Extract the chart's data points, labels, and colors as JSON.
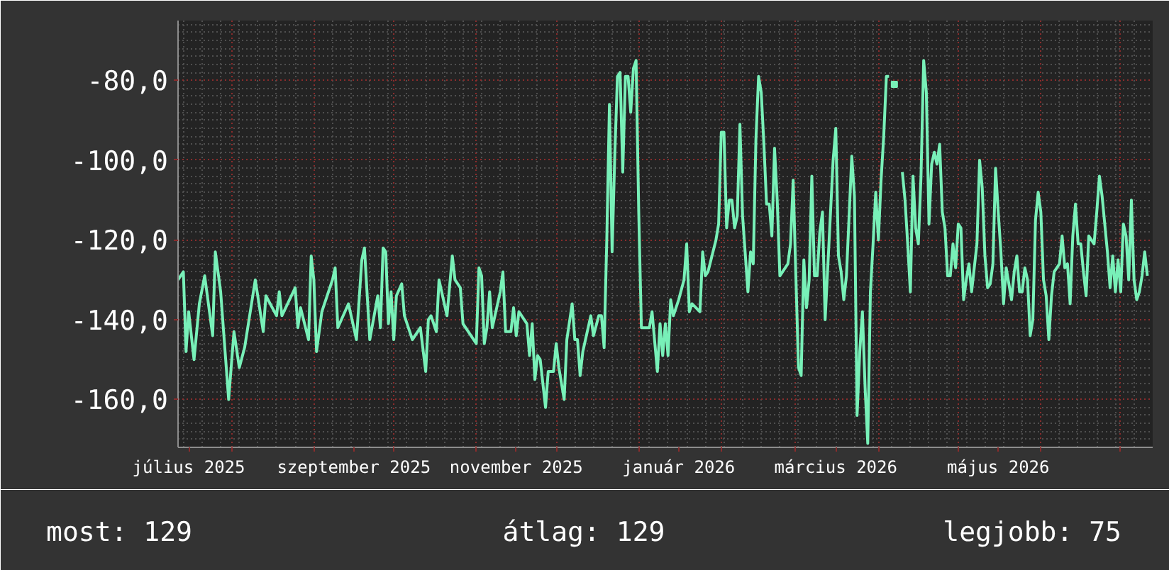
{
  "chart_data": {
    "type": "line",
    "annotations": [
      "most: 129",
      "átlag: 129",
      "legjobb: 75"
    ],
    "xlim": [
      "2025-07-12",
      "2026-07-13"
    ],
    "xticks": [
      {
        "value": "2025-07-16",
        "label": "július 2025"
      },
      {
        "value": "2025-08-01",
        "label": null
      },
      {
        "value": "2025-09-01",
        "label": null
      },
      {
        "value": "2025-09-16",
        "label": "szeptember 2025"
      },
      {
        "value": "2025-10-01",
        "label": null
      },
      {
        "value": "2025-11-01",
        "label": null
      },
      {
        "value": "2025-11-16",
        "label": "november 2025"
      },
      {
        "value": "2025-12-01",
        "label": null
      },
      {
        "value": "2026-01-01",
        "label": null
      },
      {
        "value": "2026-01-16",
        "label": "január 2026"
      },
      {
        "value": "2026-02-01",
        "label": null
      },
      {
        "value": "2026-03-01",
        "label": null
      },
      {
        "value": "2026-03-16",
        "label": "március 2026"
      },
      {
        "value": "2026-04-01",
        "label": null
      },
      {
        "value": "2026-05-01",
        "label": null
      },
      {
        "value": "2026-05-16",
        "label": "május 2026"
      },
      {
        "value": "2026-06-01",
        "label": null
      },
      {
        "value": "2026-07-01",
        "label": null
      }
    ],
    "ylim": [
      -172,
      -65
    ],
    "yticks": [
      {
        "value": -80,
        "label": "-80,0"
      },
      {
        "value": -100,
        "label": "-100,0"
      },
      {
        "value": -120,
        "label": "-120,0"
      },
      {
        "value": -140,
        "label": "-140,0"
      },
      {
        "value": -160,
        "label": "-160,0"
      }
    ],
    "grid": true,
    "series": [
      {
        "color": "#78f0b8",
        "x": [
          "2025-07-12",
          "2025-07-14",
          "2025-07-15",
          "2025-07-16",
          "2025-07-18",
          "2025-07-20",
          "2025-07-22",
          "2025-07-25",
          "2025-07-26",
          "2025-07-28",
          "2025-07-31",
          "2025-08-02",
          "2025-08-04",
          "2025-08-06",
          "2025-08-10",
          "2025-08-13",
          "2025-08-14",
          "2025-08-18",
          "2025-08-19",
          "2025-08-20",
          "2025-08-25",
          "2025-08-26",
          "2025-08-27",
          "2025-08-30",
          "2025-08-31",
          "2025-09-01",
          "2025-09-02",
          "2025-09-04",
          "2025-09-08",
          "2025-09-09",
          "2025-09-10",
          "2025-09-14",
          "2025-09-17",
          "2025-09-19",
          "2025-09-20",
          "2025-09-22",
          "2025-09-25",
          "2025-09-26",
          "2025-09-27",
          "2025-09-28",
          "2025-09-29",
          "2025-09-30",
          "2025-10-01",
          "2025-10-02",
          "2025-10-04",
          "2025-10-05",
          "2025-10-08",
          "2025-10-11",
          "2025-10-13",
          "2025-10-14",
          "2025-10-15",
          "2025-10-17",
          "2025-10-18",
          "2025-10-21",
          "2025-10-23",
          "2025-10-24",
          "2025-10-26",
          "2025-10-27",
          "2025-11-01",
          "2025-11-02",
          "2025-11-03",
          "2025-11-04",
          "2025-11-05",
          "2025-11-06",
          "2025-11-07",
          "2025-11-10",
          "2025-11-11",
          "2025-11-12",
          "2025-11-14",
          "2025-11-15",
          "2025-11-16",
          "2025-11-17",
          "2025-11-20",
          "2025-11-21",
          "2025-11-22",
          "2025-11-23",
          "2025-11-24",
          "2025-11-25",
          "2025-11-27",
          "2025-11-28",
          "2025-11-30",
          "2025-12-01",
          "2025-12-02",
          "2025-12-04",
          "2025-12-05",
          "2025-12-07",
          "2025-12-08",
          "2025-12-09",
          "2025-12-10",
          "2025-12-11",
          "2025-12-14",
          "2025-12-15",
          "2025-12-17",
          "2025-12-18",
          "2025-12-19",
          "2025-12-20",
          "2025-12-21",
          "2025-12-22",
          "2025-12-23",
          "2025-12-24",
          "2025-12-25",
          "2025-12-26",
          "2025-12-27",
          "2025-12-28",
          "2025-12-29",
          "2025-12-30",
          "2025-12-31",
          "2026-01-01",
          "2026-01-02",
          "2026-01-05",
          "2026-01-06",
          "2026-01-08",
          "2026-01-09",
          "2026-01-10",
          "2026-01-11",
          "2026-01-12",
          "2026-01-13",
          "2026-01-14",
          "2026-01-16",
          "2026-01-18",
          "2026-01-19",
          "2026-01-20",
          "2026-01-21",
          "2026-01-24",
          "2026-01-25",
          "2026-01-26",
          "2026-01-27",
          "2026-01-30",
          "2026-01-31",
          "2026-02-01",
          "2026-02-02",
          "2026-02-03",
          "2026-02-04",
          "2026-02-05",
          "2026-02-06",
          "2026-02-07",
          "2026-02-08",
          "2026-02-09",
          "2026-02-11",
          "2026-02-12",
          "2026-02-13",
          "2026-02-14",
          "2026-02-15",
          "2026-02-16",
          "2026-02-17",
          "2026-02-18",
          "2026-02-19",
          "2026-02-20",
          "2026-02-21",
          "2026-02-22",
          "2026-02-23",
          "2026-02-26",
          "2026-02-27",
          "2026-02-28",
          "2026-03-01",
          "2026-03-02",
          "2026-03-03",
          "2026-03-04",
          "2026-03-05",
          "2026-03-06",
          "2026-03-07",
          "2026-03-08",
          "2026-03-09",
          "2026-03-10",
          "2026-03-11",
          "2026-03-12",
          "2026-03-15",
          "2026-03-16",
          "2026-03-17",
          "2026-03-18",
          "2026-03-19",
          "2026-03-20",
          "2026-03-21",
          "2026-03-22",
          "2026-03-23",
          "2026-03-24",
          "2026-03-25",
          "2026-03-26",
          "2026-03-27",
          "2026-03-28",
          "2026-03-29",
          "2026-03-30",
          "2026-03-31",
          "2026-04-01",
          "2026-04-02",
          "2026-04-03",
          "2026-04-04",
          "2026-04-05",
          "2026-04-06",
          "2026-04-09",
          "2026-04-10",
          "2026-04-11",
          "2026-04-12",
          "2026-04-13",
          "2026-04-14",
          "2026-04-15",
          "2026-04-16",
          "2026-04-17",
          "2026-04-18",
          "2026-04-19",
          "2026-04-20",
          "2026-04-21",
          "2026-04-22",
          "2026-04-23",
          "2026-04-24",
          "2026-04-25",
          "2026-04-26",
          "2026-04-27",
          "2026-04-28",
          "2026-04-29",
          "2026-04-30",
          "2026-05-01",
          "2026-05-02",
          "2026-05-03",
          "2026-05-04",
          "2026-05-05",
          "2026-05-06",
          "2026-05-07",
          "2026-05-08",
          "2026-05-09",
          "2026-05-10",
          "2026-05-11",
          "2026-05-12",
          "2026-05-13",
          "2026-05-14",
          "2026-05-15",
          "2026-05-16",
          "2026-05-17",
          "2026-05-18",
          "2026-05-19",
          "2026-05-21",
          "2026-05-22",
          "2026-05-23",
          "2026-05-24",
          "2026-05-25",
          "2026-05-26",
          "2026-05-27",
          "2026-05-28",
          "2026-05-29",
          "2026-05-30",
          "2026-05-31",
          "2026-06-01",
          "2026-06-02",
          "2026-06-03",
          "2026-06-04",
          "2026-06-05",
          "2026-06-06",
          "2026-06-08",
          "2026-06-09",
          "2026-06-10",
          "2026-06-11",
          "2026-06-12",
          "2026-06-13",
          "2026-06-14",
          "2026-06-15",
          "2026-06-16",
          "2026-06-17",
          "2026-06-18",
          "2026-06-19",
          "2026-06-21",
          "2026-06-22",
          "2026-06-23",
          "2026-06-24",
          "2026-06-25",
          "2026-06-26",
          "2026-06-27",
          "2026-06-28",
          "2026-06-29",
          "2026-06-30",
          "2026-07-01",
          "2026-07-02",
          "2026-07-03",
          "2026-07-04",
          "2026-07-05",
          "2026-07-06",
          "2026-07-07",
          "2026-07-08",
          "2026-07-09",
          "2026-07-10",
          "2026-07-11"
        ],
        "values": [
          -130,
          -128,
          -148,
          -138,
          -150,
          -136,
          -129,
          -144,
          -123,
          -133,
          -160,
          -143,
          -152,
          -147,
          -130,
          -143,
          -134,
          -139,
          -133,
          -139,
          -132,
          -142,
          -137,
          -145,
          -124,
          -130,
          -148,
          -138,
          -130,
          -127,
          -142,
          -136,
          -145,
          -125,
          -122,
          -145,
          -134,
          -142,
          -122,
          -123,
          -141,
          -133,
          -145,
          -134,
          -131,
          -139,
          -145,
          -142,
          -153,
          -140,
          -139,
          -143,
          -130,
          -139,
          -124,
          -130,
          -132,
          -141,
          -146,
          -127,
          -129,
          -146,
          -142,
          -133,
          -142,
          -133,
          -128,
          -143,
          -143,
          -137,
          -144,
          -138,
          -141,
          -149,
          -141,
          -155,
          -149,
          -150,
          -162,
          -153,
          -153,
          -146,
          -152,
          -160,
          -145,
          -136,
          -145,
          -145,
          -154,
          -148,
          -139,
          -144,
          -139,
          -139,
          -147,
          -120,
          -86,
          -123,
          -99,
          -79,
          -78,
          -103,
          -79,
          -79,
          -88,
          -77,
          -75,
          -113,
          -142,
          -142,
          -138,
          -153,
          -141,
          -149,
          -141,
          -149,
          -135,
          -139,
          -135,
          -130,
          -121,
          -138,
          -136,
          -138,
          -123,
          -129,
          -128,
          -120,
          -116,
          -93,
          -93,
          -117,
          -110,
          -110,
          -117,
          -114,
          -91,
          -114,
          -133,
          -123,
          -126,
          -95,
          -79,
          -83,
          -96,
          -111,
          -111,
          -119,
          -97,
          -110,
          -129,
          -126,
          -121,
          -105,
          -129,
          -152,
          -154,
          -125,
          -137,
          -130,
          -104,
          -129,
          -129,
          -118,
          -113,
          -140,
          -100,
          -92,
          -124,
          -128,
          -135,
          -129,
          -114,
          -99,
          -109,
          -164,
          -148,
          -138,
          -157,
          -171,
          -133,
          -121,
          -108,
          -120,
          -105,
          -94,
          -79,
          -79,
          null,
          null,
          -103,
          -110,
          -121,
          -133,
          -104,
          -117,
          -121,
          -104,
          -75,
          -83,
          -116,
          -101,
          -98,
          -101,
          -96,
          -113,
          -117,
          -129,
          -129,
          -121,
          -127,
          -116,
          -117,
          -135,
          -130,
          -126,
          -133,
          -127,
          -121,
          -100,
          -107,
          -124,
          -132,
          -131,
          -126,
          -102,
          -113,
          -123,
          -136,
          -127,
          -135,
          -128,
          -124,
          -133,
          -133,
          -127,
          -130,
          -144,
          -140,
          -115,
          -108,
          -113,
          -130,
          -134,
          -145,
          -134,
          -128,
          -126,
          -119,
          -127,
          -126,
          -136,
          -119,
          -111,
          -121,
          -121,
          -128,
          -134,
          -119,
          -121,
          -113,
          -104,
          -109,
          -116,
          -123,
          -132,
          -124,
          -133,
          -125,
          -133,
          -116,
          -119,
          -130,
          -110,
          -130,
          -135,
          -133,
          -129,
          -123,
          -129
        ]
      },
      {
        "type": "scatter",
        "marker": "square",
        "color": "#78f0b8",
        "x": [
          "2026-04-07"
        ],
        "values": [
          -81
        ]
      }
    ]
  }
}
